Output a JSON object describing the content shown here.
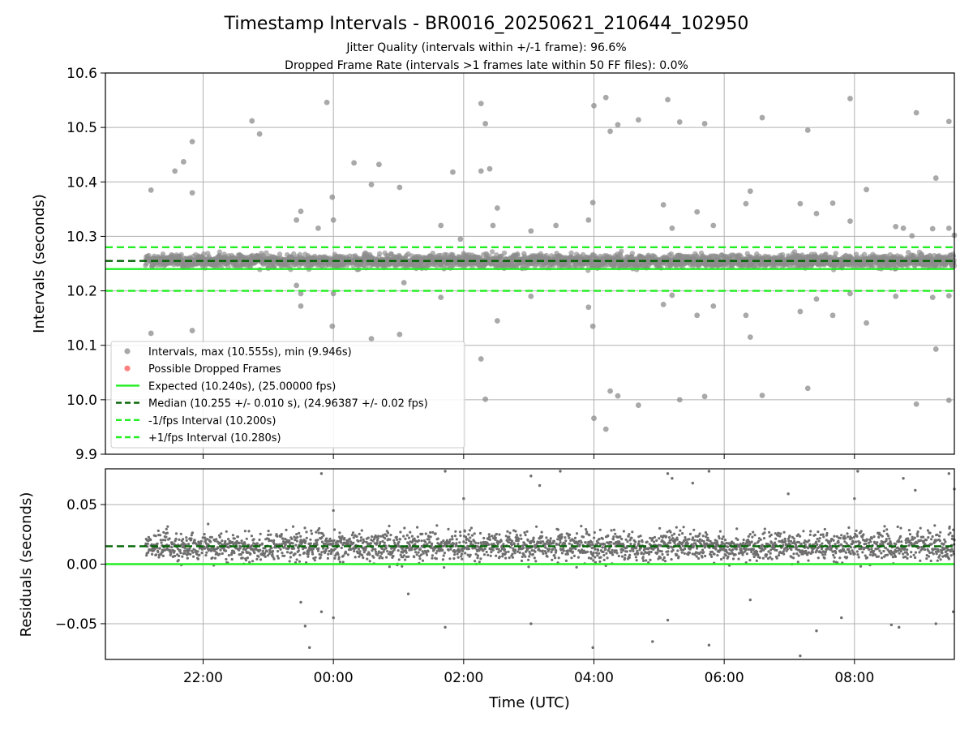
{
  "chart_data": {
    "type": "scatter",
    "title": "Timestamp Intervals - BR0016_20250621_210644_102950",
    "subtitle_lines": [
      "Jitter Quality (intervals within +/-1 frame): 96.6%",
      "Dropped Frame Rate (intervals >1 frames late within 50 FF files): 0.0%"
    ],
    "x_start": "20:30",
    "x_end": "09:32",
    "data_start": "21:07",
    "data_end": "09:32",
    "xlabel": "Time (UTC)",
    "x_ticks": [
      "22:00",
      "00:00",
      "02:00",
      "04:00",
      "06:00",
      "08:00"
    ],
    "top_panel": {
      "ylabel": "Intervals (seconds)",
      "ylim": [
        9.9,
        10.6
      ],
      "y_ticks": [
        "10.6",
        "10.5",
        "10.4",
        "10.3",
        "10.2",
        "10.1",
        "10.0",
        "9.9"
      ],
      "grid": true,
      "expected": 10.24,
      "median": 10.255,
      "minus_1fps": 10.2,
      "plus_1fps": 10.28,
      "max": 10.555,
      "min": 9.946,
      "core_center": 10.255,
      "core_spread": 0.012,
      "legend_position": "lower-left",
      "legend": [
        {
          "label": "Intervals, max (10.555s), min (9.946s)",
          "kind": "marker",
          "color": "#999999"
        },
        {
          "label": "Possible Dropped Frames",
          "kind": "marker",
          "color": "#ff6b6b"
        },
        {
          "label": "Expected (10.240s), (25.00000 fps)",
          "kind": "solid",
          "color": "#22ee22"
        },
        {
          "label": "Median (10.255 +/- 0.010 s), (24.96387 +/- 0.02 fps)",
          "kind": "dashed",
          "color": "#006400"
        },
        {
          "label": "-1/fps Interval (10.200s)",
          "kind": "dashed",
          "color": "#22ee22"
        },
        {
          "label": "+1/fps Interval (10.280s)",
          "kind": "dashed",
          "color": "#22ee22"
        }
      ],
      "outliers": [
        {
          "t": "21:12",
          "y": 10.385
        },
        {
          "t": "21:12",
          "y": 10.122
        },
        {
          "t": "21:34",
          "y": 10.42
        },
        {
          "t": "21:42",
          "y": 10.437
        },
        {
          "t": "21:50",
          "y": 10.474
        },
        {
          "t": "21:50",
          "y": 10.38
        },
        {
          "t": "21:50",
          "y": 10.127
        },
        {
          "t": "22:45",
          "y": 10.512
        },
        {
          "t": "22:52",
          "y": 10.488
        },
        {
          "t": "23:26",
          "y": 10.33
        },
        {
          "t": "23:30",
          "y": 10.346
        },
        {
          "t": "23:26",
          "y": 10.21
        },
        {
          "t": "23:30",
          "y": 10.195
        },
        {
          "t": "23:30",
          "y": 10.172
        },
        {
          "t": "23:46",
          "y": 10.315
        },
        {
          "t": "23:54",
          "y": 10.546
        },
        {
          "t": "23:59",
          "y": 10.372
        },
        {
          "t": "23:59",
          "y": 10.135
        },
        {
          "t": "00:00",
          "y": 10.33
        },
        {
          "t": "00:00",
          "y": 10.195
        },
        {
          "t": "00:19",
          "y": 10.435
        },
        {
          "t": "00:35",
          "y": 10.395
        },
        {
          "t": "00:35",
          "y": 10.112
        },
        {
          "t": "00:42",
          "y": 10.432
        },
        {
          "t": "01:01",
          "y": 10.39
        },
        {
          "t": "01:01",
          "y": 10.12
        },
        {
          "t": "01:05",
          "y": 10.215
        },
        {
          "t": "01:39",
          "y": 10.32
        },
        {
          "t": "01:39",
          "y": 10.188
        },
        {
          "t": "01:50",
          "y": 10.418
        },
        {
          "t": "01:57",
          "y": 10.295
        },
        {
          "t": "02:16",
          "y": 10.544
        },
        {
          "t": "02:16",
          "y": 10.42
        },
        {
          "t": "02:16",
          "y": 10.075
        },
        {
          "t": "02:20",
          "y": 10.507
        },
        {
          "t": "02:24",
          "y": 10.424
        },
        {
          "t": "02:20",
          "y": 10.001
        },
        {
          "t": "02:27",
          "y": 10.32
        },
        {
          "t": "02:31",
          "y": 10.352
        },
        {
          "t": "02:31",
          "y": 10.145
        },
        {
          "t": "03:02",
          "y": 10.31
        },
        {
          "t": "03:02",
          "y": 10.19
        },
        {
          "t": "03:25",
          "y": 10.32
        },
        {
          "t": "03:55",
          "y": 10.33
        },
        {
          "t": "03:55",
          "y": 10.17
        },
        {
          "t": "03:59",
          "y": 10.362
        },
        {
          "t": "03:59",
          "y": 10.135
        },
        {
          "t": "04:00",
          "y": 10.54
        },
        {
          "t": "04:00",
          "y": 9.966
        },
        {
          "t": "04:11",
          "y": 10.555
        },
        {
          "t": "04:11",
          "y": 9.946
        },
        {
          "t": "04:15",
          "y": 10.493
        },
        {
          "t": "04:15",
          "y": 10.016
        },
        {
          "t": "04:22",
          "y": 10.505
        },
        {
          "t": "04:22",
          "y": 10.007
        },
        {
          "t": "04:41",
          "y": 10.514
        },
        {
          "t": "04:41",
          "y": 9.99
        },
        {
          "t": "05:04",
          "y": 10.358
        },
        {
          "t": "05:04",
          "y": 10.175
        },
        {
          "t": "05:08",
          "y": 10.551
        },
        {
          "t": "05:12",
          "y": 10.315
        },
        {
          "t": "05:12",
          "y": 10.192
        },
        {
          "t": "05:19",
          "y": 10.51
        },
        {
          "t": "05:19",
          "y": 10.0
        },
        {
          "t": "05:35",
          "y": 10.345
        },
        {
          "t": "05:35",
          "y": 10.155
        },
        {
          "t": "05:42",
          "y": 10.507
        },
        {
          "t": "05:42",
          "y": 10.006
        },
        {
          "t": "05:50",
          "y": 10.32
        },
        {
          "t": "05:50",
          "y": 10.172
        },
        {
          "t": "06:20",
          "y": 10.36
        },
        {
          "t": "06:24",
          "y": 10.383
        },
        {
          "t": "06:24",
          "y": 10.115
        },
        {
          "t": "06:20",
          "y": 10.155
        },
        {
          "t": "06:35",
          "y": 10.518
        },
        {
          "t": "06:35",
          "y": 10.008
        },
        {
          "t": "07:10",
          "y": 10.36
        },
        {
          "t": "07:10",
          "y": 10.162
        },
        {
          "t": "07:17",
          "y": 10.495
        },
        {
          "t": "07:17",
          "y": 10.021
        },
        {
          "t": "07:25",
          "y": 10.342
        },
        {
          "t": "07:25",
          "y": 10.185
        },
        {
          "t": "07:40",
          "y": 10.361
        },
        {
          "t": "07:40",
          "y": 10.155
        },
        {
          "t": "07:56",
          "y": 10.553
        },
        {
          "t": "07:56",
          "y": 10.328
        },
        {
          "t": "07:56",
          "y": 10.195
        },
        {
          "t": "08:11",
          "y": 10.386
        },
        {
          "t": "08:11",
          "y": 10.141
        },
        {
          "t": "08:38",
          "y": 10.318
        },
        {
          "t": "08:38",
          "y": 10.19
        },
        {
          "t": "08:45",
          "y": 10.315
        },
        {
          "t": "08:53",
          "y": 10.301
        },
        {
          "t": "08:57",
          "y": 10.527
        },
        {
          "t": "08:57",
          "y": 9.992
        },
        {
          "t": "09:12",
          "y": 10.314
        },
        {
          "t": "09:12",
          "y": 10.188
        },
        {
          "t": "09:15",
          "y": 10.407
        },
        {
          "t": "09:15",
          "y": 10.093
        },
        {
          "t": "09:27",
          "y": 10.315
        },
        {
          "t": "09:27",
          "y": 10.191
        },
        {
          "t": "09:27",
          "y": 10.511
        },
        {
          "t": "09:27",
          "y": 9.999
        },
        {
          "t": "09:32",
          "y": 10.302
        }
      ]
    },
    "bottom_panel": {
      "ylabel": "Residuals (seconds)",
      "ylim": [
        -0.08,
        0.08
      ],
      "y_ticks": [
        "0.05",
        "0.00",
        "−0.05"
      ],
      "grid": true,
      "zero_line": 0.0,
      "median_line": 0.015,
      "core_center": 0.015,
      "core_spread": 0.012,
      "outliers": [
        {
          "t": "23:34",
          "y": -0.052
        },
        {
          "t": "23:38",
          "y": -0.07
        },
        {
          "t": "23:30",
          "y": -0.032
        },
        {
          "t": "23:49",
          "y": -0.04
        },
        {
          "t": "23:49",
          "y": 0.076
        },
        {
          "t": "00:00",
          "y": -0.045
        },
        {
          "t": "00:00",
          "y": 0.045
        },
        {
          "t": "01:09",
          "y": -0.025
        },
        {
          "t": "01:43",
          "y": -0.053
        },
        {
          "t": "01:43",
          "y": 0.078
        },
        {
          "t": "02:00",
          "y": 0.055
        },
        {
          "t": "03:02",
          "y": -0.05
        },
        {
          "t": "03:02",
          "y": 0.074
        },
        {
          "t": "03:10",
          "y": 0.066
        },
        {
          "t": "03:29",
          "y": 0.078
        },
        {
          "t": "03:59",
          "y": -0.07
        },
        {
          "t": "04:54",
          "y": -0.065
        },
        {
          "t": "05:08",
          "y": -0.047
        },
        {
          "t": "05:08",
          "y": 0.076
        },
        {
          "t": "05:12",
          "y": 0.072
        },
        {
          "t": "05:31",
          "y": 0.068
        },
        {
          "t": "05:46",
          "y": -0.068
        },
        {
          "t": "05:46",
          "y": 0.078
        },
        {
          "t": "06:24",
          "y": -0.03
        },
        {
          "t": "06:59",
          "y": 0.059
        },
        {
          "t": "07:10",
          "y": -0.077
        },
        {
          "t": "07:25",
          "y": -0.056
        },
        {
          "t": "07:48",
          "y": -0.045
        },
        {
          "t": "08:00",
          "y": 0.055
        },
        {
          "t": "08:03",
          "y": 0.078
        },
        {
          "t": "08:34",
          "y": -0.051
        },
        {
          "t": "08:41",
          "y": -0.053
        },
        {
          "t": "08:45",
          "y": 0.072
        },
        {
          "t": "08:56",
          "y": 0.062
        },
        {
          "t": "09:15",
          "y": -0.05
        },
        {
          "t": "09:27",
          "y": 0.076
        },
        {
          "t": "09:31",
          "y": -0.04
        },
        {
          "t": "09:32",
          "y": 0.063
        }
      ]
    }
  }
}
